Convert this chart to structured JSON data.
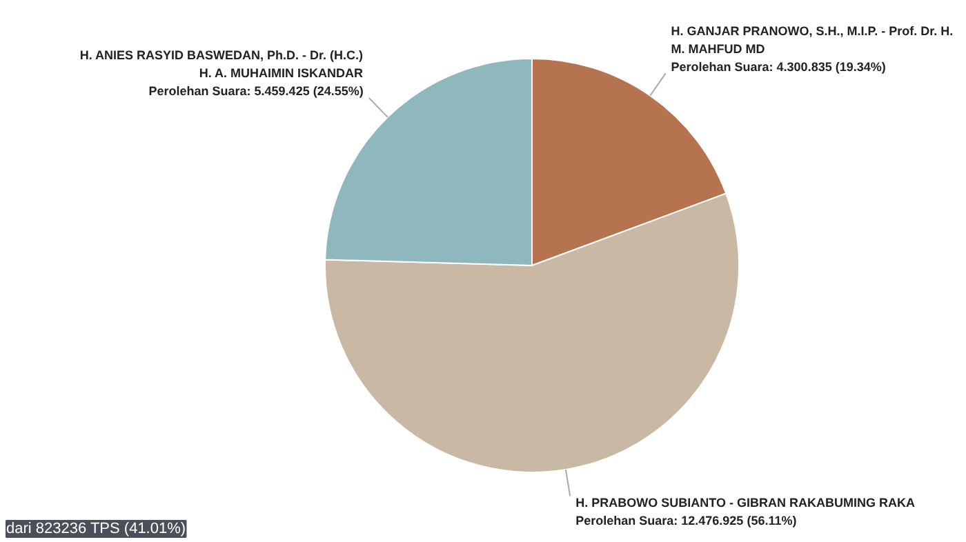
{
  "chart_data": {
    "type": "pie",
    "categories": [
      "H. GANJAR PRANOWO, S.H., M.I.P. - Prof. Dr. H. M. MAHFUD MD",
      "H. PRABOWO SUBIANTO - GIBRAN RAKABUMING RAKA",
      "H. ANIES RASYID BASWEDAN, Ph.D. - Dr. (H.C.) H. A. MUHAIMIN ISKANDAR"
    ],
    "values": [
      4300835,
      12476925,
      5459425
    ],
    "colors": [
      "#b5734f",
      "#c8b8a4",
      "#8fb8be"
    ],
    "value_labels": [
      "Perolehan Suara: 4.300.835 (19.34%)",
      "Perolehan Suara: 12.476.925 (56.11%)",
      "Perolehan Suara: 5.459.425 (24.55%)"
    ],
    "annotations": [
      "dari 823236 TPS (41.01%)"
    ]
  }
}
